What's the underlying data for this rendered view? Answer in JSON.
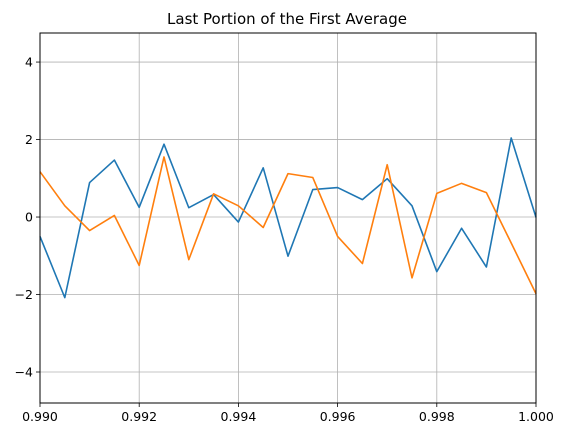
{
  "chart_data": {
    "type": "line",
    "title": "Last Portion of the First Average",
    "xlabel": "",
    "ylabel": "",
    "xlim": [
      0.99,
      1.0
    ],
    "ylim": [
      -4.8,
      4.75
    ],
    "grid": true,
    "legend": "none",
    "x_ticks": [
      {
        "value": 0.99,
        "label": "0.990"
      },
      {
        "value": 0.992,
        "label": "0.992"
      },
      {
        "value": 0.994,
        "label": "0.994"
      },
      {
        "value": 0.996,
        "label": "0.996"
      },
      {
        "value": 0.998,
        "label": "0.998"
      },
      {
        "value": 1.0,
        "label": "1.000"
      }
    ],
    "y_ticks": [
      {
        "value": -4,
        "label": "−4"
      },
      {
        "value": -2,
        "label": "−2"
      },
      {
        "value": 0,
        "label": "0"
      },
      {
        "value": 2,
        "label": "2"
      },
      {
        "value": 4,
        "label": "4"
      }
    ],
    "x": [
      0.99,
      0.9905,
      0.991,
      0.9915,
      0.992,
      0.9925,
      0.993,
      0.9935,
      0.994,
      0.9945,
      0.995,
      0.9955,
      0.996,
      0.9965,
      0.997,
      0.9975,
      0.998,
      0.9985,
      0.999,
      0.9995,
      1.0
    ],
    "series": [
      {
        "color": "#1f77b4",
        "values": [
          -0.5,
          -2.08,
          0.89,
          1.47,
          0.25,
          1.88,
          0.24,
          0.58,
          -0.13,
          1.27,
          -1.01,
          0.71,
          0.76,
          0.45,
          0.99,
          0.29,
          -1.41,
          -0.29,
          -1.29,
          2.04,
          -0.01
        ]
      },
      {
        "color": "#ff7f0e",
        "values": [
          1.17,
          0.29,
          -0.35,
          0.04,
          -1.25,
          1.55,
          -1.1,
          0.6,
          0.29,
          -0.27,
          1.12,
          1.02,
          -0.5,
          -1.2,
          1.35,
          -1.57,
          0.61,
          0.87,
          0.63,
          -0.67,
          -1.98
        ]
      }
    ]
  }
}
